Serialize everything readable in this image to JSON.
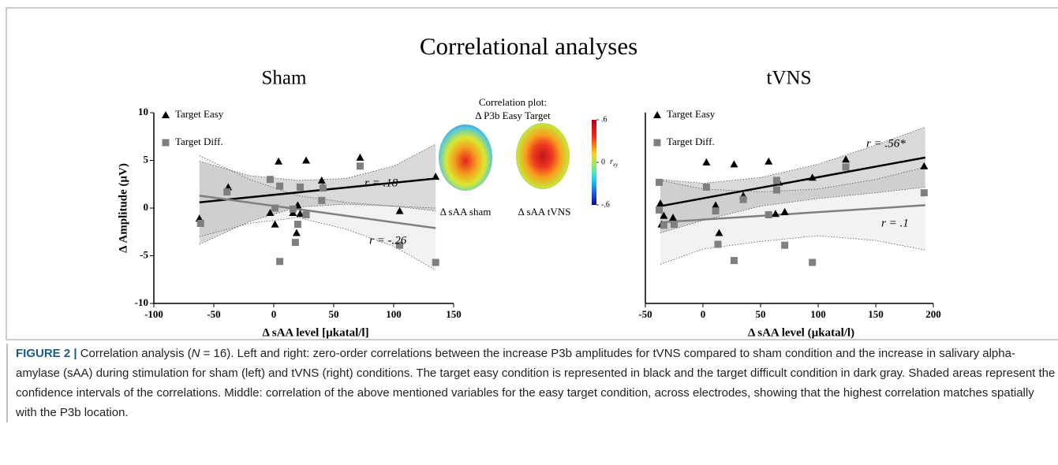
{
  "figure_title": "Correlational analyses",
  "chart_data": [
    {
      "type": "scatter",
      "title": "Sham",
      "ylabel": "Δ Amplitude (μV)",
      "xlabel": "Δ sAA level [µkatal/l]",
      "xlim": [
        -100,
        150
      ],
      "xticks": [
        -100,
        -50,
        0,
        50,
        100,
        150
      ],
      "ylim": [
        -10,
        10
      ],
      "yticks": [
        10,
        5,
        0,
        -5,
        -10
      ],
      "legend": "upper left",
      "annotations": [
        "r = .18",
        "r = -.26"
      ],
      "series": [
        {
          "name": "Target Easy",
          "color": "#000000",
          "marker": "triangle",
          "x": [
            -62,
            -38,
            -3,
            1,
            4,
            27,
            16,
            19,
            20,
            22,
            40,
            41,
            72,
            105,
            135
          ],
          "values": [
            -1.1,
            2.2,
            -0.5,
            -1.7,
            4.9,
            5.0,
            -0.5,
            -2.6,
            0.3,
            -0.6,
            2.9,
            2.2,
            5.3,
            -0.3,
            3.3
          ],
          "fit": {
            "x": [
              -62,
              135
            ],
            "values": [
              0.6,
              3.1
            ]
          },
          "band": {
            "x": [
              -62,
              -20,
              20,
              60,
              100,
              135
            ],
            "upper": [
              4.9,
              3.4,
              2.9,
              3.1,
              4.4,
              6.7
            ],
            "lower": [
              -3.8,
              -1.4,
              0.1,
              0.4,
              0.2,
              -0.3
            ]
          }
        },
        {
          "name": "Target Diff.",
          "color": "#7f7f7f",
          "marker": "square",
          "x": [
            -61,
            -39,
            -3,
            1,
            5,
            5,
            16,
            18,
            20,
            22,
            27,
            40,
            41,
            72,
            105,
            135
          ],
          "values": [
            -1.6,
            1.7,
            3.0,
            0,
            2.3,
            -5.6,
            -0.1,
            -3.6,
            -1.7,
            2.2,
            -0.7,
            0.8,
            2.1,
            4.4,
            -3.9,
            -5.7
          ],
          "fit": {
            "x": [
              -62,
              135
            ],
            "values": [
              1.3,
              -2.1
            ]
          },
          "band": {
            "x": [
              -62,
              -20,
              20,
              60,
              100,
              135
            ],
            "upper": [
              5.5,
              3.0,
              1.3,
              0.6,
              0.2,
              0.0
            ],
            "lower": [
              -3.0,
              -1.6,
              -1.0,
              -2.2,
              -4.0,
              -6.5
            ]
          }
        }
      ]
    },
    {
      "type": "scatter",
      "title": "tVNS",
      "xlabel": "Δ sAA level (µkatal/l)",
      "xlim": [
        -50,
        200
      ],
      "xticks": [
        -50,
        0,
        50,
        100,
        150,
        200
      ],
      "ylim": [
        -10,
        10
      ],
      "legend": "upper left",
      "annotations": [
        "r = .56*",
        "r = .1"
      ],
      "series": [
        {
          "name": "Target Easy",
          "color": "#000000",
          "marker": "triangle",
          "x": [
            -37,
            -36,
            -34,
            -26,
            3,
            11,
            14,
            27,
            35,
            57,
            63,
            66,
            71,
            95,
            124,
            192
          ],
          "values": [
            0.5,
            -1.7,
            -0.8,
            -1.0,
            4.8,
            0.3,
            -2.6,
            4.6,
            1.3,
            4.9,
            -0.6,
            2.7,
            -0.4,
            3.2,
            5.1,
            4.4
          ],
          "fit": {
            "x": [
              -37,
              193
            ],
            "values": [
              0.2,
              5.3
            ]
          },
          "band": {
            "x": [
              -37,
              0,
              50,
              100,
              150,
              193
            ],
            "upper": [
              3.0,
              2.6,
              3.2,
              4.6,
              6.6,
              8.5
            ],
            "lower": [
              -2.6,
              -1.3,
              0.2,
              1.0,
              1.6,
              2.2
            ]
          }
        },
        {
          "name": "Target Diff.",
          "color": "#7f7f7f",
          "marker": "square",
          "x": [
            -38,
            -38,
            -34,
            -25,
            3,
            11,
            13,
            27,
            35,
            57,
            64,
            64,
            71,
            95,
            124,
            192
          ],
          "values": [
            2.7,
            -0.2,
            -1.8,
            -1.7,
            2.2,
            -0.3,
            -3.8,
            -5.5,
            0.9,
            -0.7,
            1.9,
            2.9,
            -3.9,
            -5.7,
            4.3,
            1.6
          ],
          "fit": {
            "x": [
              -37,
              193
            ],
            "values": [
              -1.5,
              0.3
            ]
          },
          "band": {
            "x": [
              -37,
              0,
              50,
              100,
              150,
              193
            ],
            "upper": [
              2.9,
              2.0,
              1.7,
              2.0,
              3.0,
              4.3
            ],
            "lower": [
              -5.9,
              -4.3,
              -3.5,
              -2.9,
              -3.4,
              -4.4
            ]
          }
        }
      ]
    }
  ],
  "topomap": {
    "title_lines": [
      "Correlation plot:",
      "Δ P3b Easy Target"
    ],
    "labels": [
      "Δ sAA sham",
      "Δ sAA tVNS"
    ],
    "clim": [
      -0.6,
      0.6
    ],
    "cticks": [
      {
        "value": 0.6,
        "label": ".6"
      },
      0,
      {
        "value": -0.6,
        "label": "-.6"
      }
    ],
    "r_label": "r",
    "r_sub": "xy"
  },
  "caption": {
    "label": "FIGURE 2 |",
    "before_n": "Correlation analysis (",
    "n": "N",
    "after_n": " = 16). Left and right: zero-order correlations between the increase P3b amplitudes for tVNS compared to sham condition and the increase in salivary alpha-amylase (sAA) during stimulation for sham (left) and tVNS (right) conditions. The target easy condition is represented in black and the target difficult condition in dark gray. Shaded areas represent the confidence intervals of the correlations. Middle: correlation of the above mentioned variables for the easy target condition, across electrodes, showing that the highest correlation matches spatially with the P3b location."
  }
}
